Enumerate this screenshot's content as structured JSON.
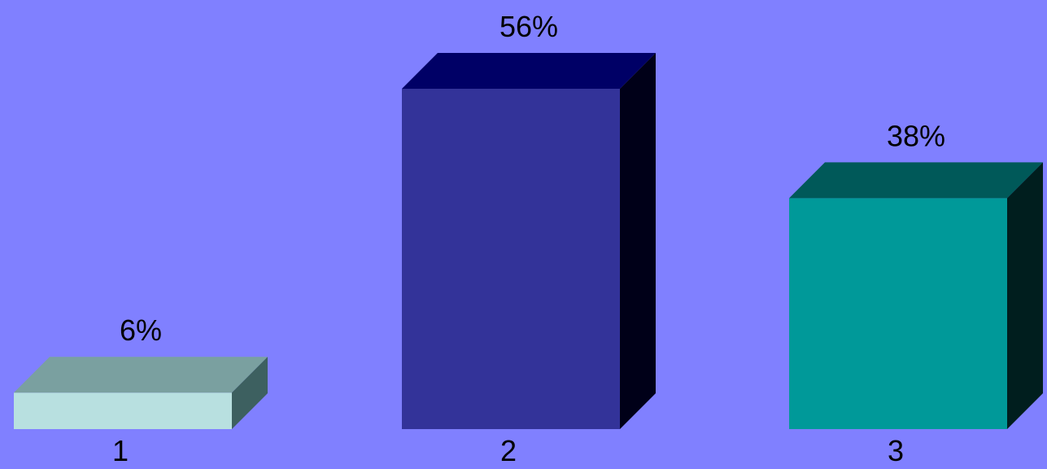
{
  "chart_data": {
    "type": "bar",
    "style": "3d",
    "categories": [
      "1",
      "2",
      "3"
    ],
    "values": [
      6,
      56,
      38
    ],
    "value_labels": [
      "6%",
      "56%",
      "38%"
    ],
    "value_unit": "%",
    "ylim": [
      0,
      56
    ],
    "grid": false,
    "legend": "none",
    "title": "",
    "xlabel": "",
    "ylabel": "",
    "colors": {
      "background": "#8080FF",
      "bars": [
        {
          "front": "#B8E0E0",
          "top": "#7AA0A0",
          "side": "#3D6060"
        },
        {
          "front": "#333399",
          "top": "#000066",
          "side": "#000018"
        },
        {
          "front": "#009999",
          "top": "#005959",
          "side": "#001E1E"
        }
      ]
    }
  }
}
